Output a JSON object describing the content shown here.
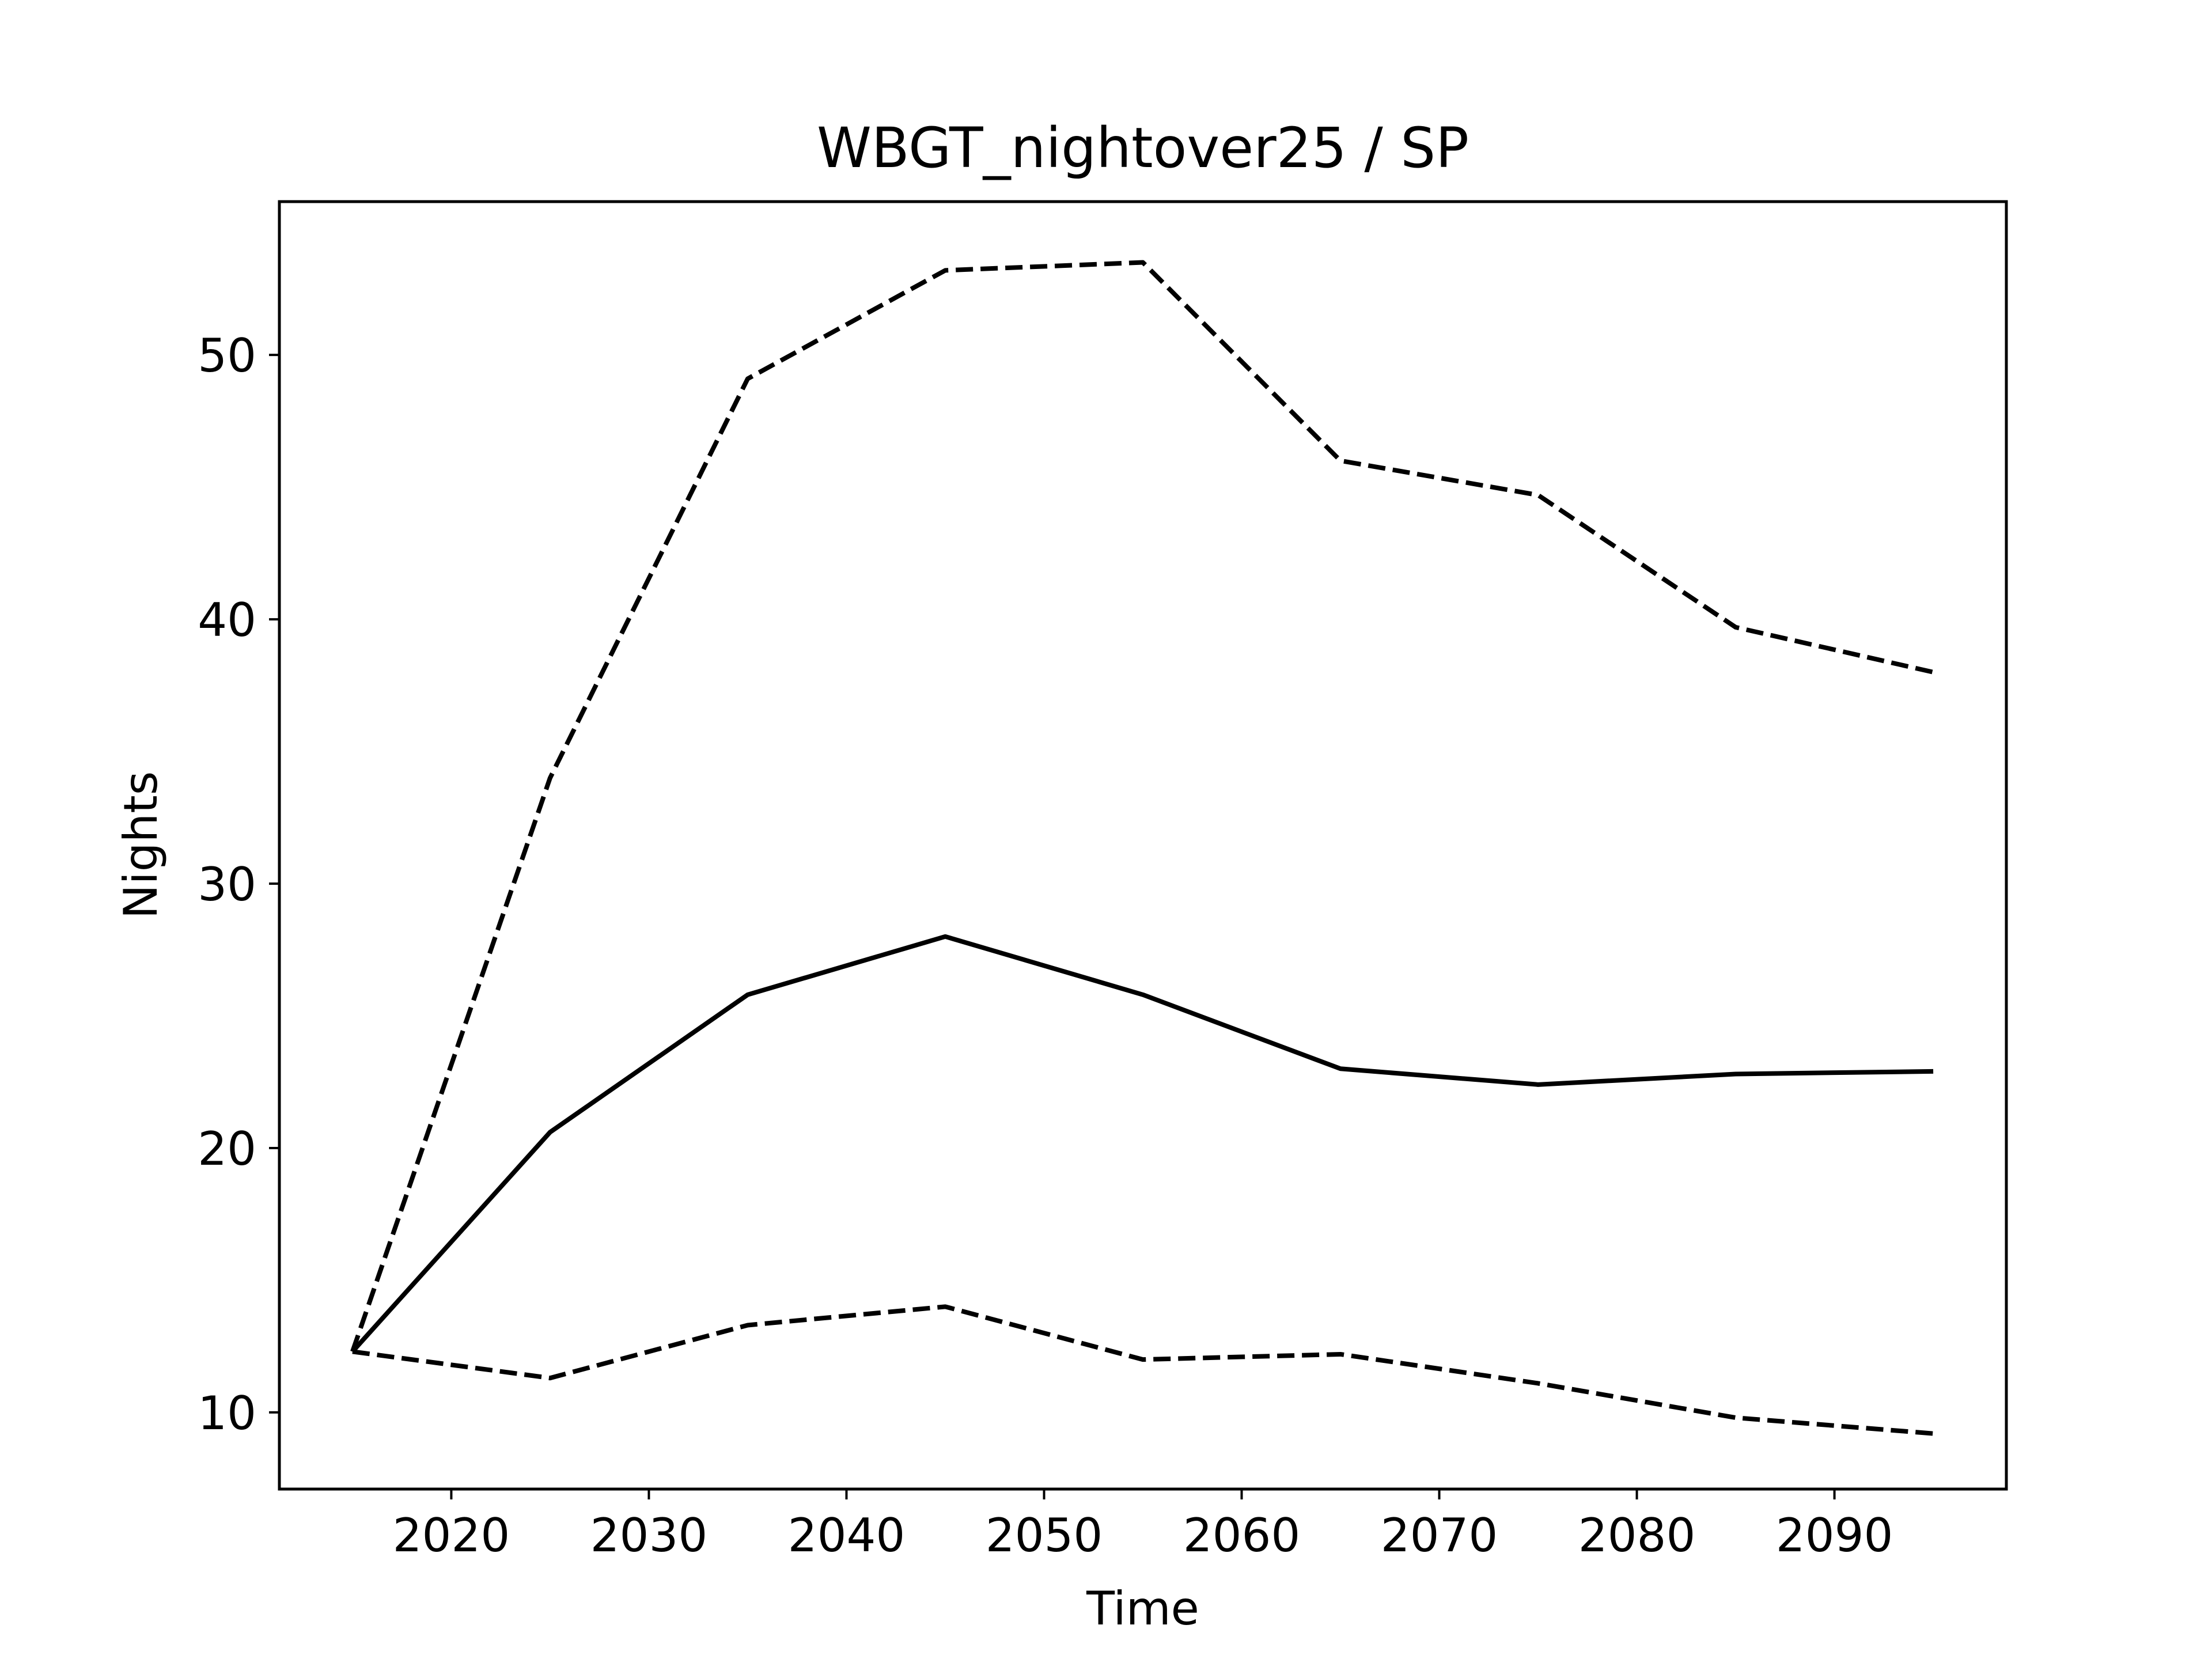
{
  "chart_data": {
    "type": "line",
    "title": "WBGT_nightover25 / SP",
    "xlabel": "Time",
    "ylabel": "Nights",
    "xlim": [
      2011.3,
      2098.7
    ],
    "ylim": [
      7.1,
      55.8
    ],
    "xticks": [
      2020,
      2030,
      2040,
      2050,
      2060,
      2070,
      2080,
      2090
    ],
    "yticks": [
      10,
      20,
      30,
      40,
      50
    ],
    "grid": false,
    "x": [
      2015,
      2025,
      2035,
      2045,
      2055,
      2065,
      2075,
      2085,
      2095
    ],
    "series": [
      {
        "style": "dashed",
        "color": "#000000",
        "values": [
          12.3,
          34.0,
          49.1,
          53.2,
          53.5,
          46.0,
          44.7,
          39.7,
          38.0
        ]
      },
      {
        "style": "solid",
        "color": "#000000",
        "values": [
          12.3,
          20.6,
          25.8,
          28.0,
          25.8,
          23.0,
          22.4,
          22.8,
          22.9
        ]
      },
      {
        "style": "dashed",
        "color": "#000000",
        "values": [
          12.3,
          11.3,
          13.3,
          14.0,
          12.0,
          12.2,
          11.1,
          9.8,
          9.2
        ]
      }
    ]
  }
}
